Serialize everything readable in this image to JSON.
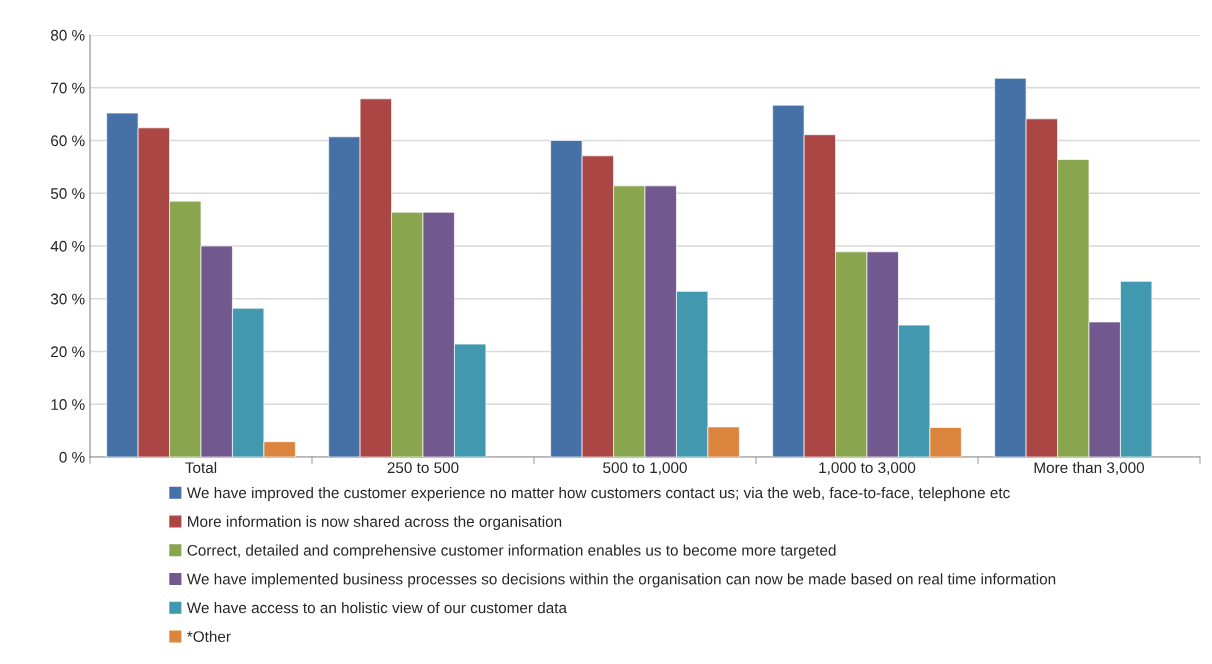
{
  "chart_data": {
    "type": "bar",
    "categories": [
      "Total",
      "250 to 500",
      "500 to 1,000",
      "1,000 to 3,000",
      "More than 3,000"
    ],
    "series": [
      {
        "name": "We have improved the customer experience no matter how customers contact us; via the web, face-to-face, telephone etc",
        "color": "#4571a7",
        "values": [
          65.2,
          60.7,
          60.0,
          66.7,
          71.8
        ]
      },
      {
        "name": "More information is now shared across the organisation",
        "color": "#aa4643",
        "values": [
          62.4,
          67.9,
          57.1,
          61.1,
          64.1
        ]
      },
      {
        "name": "Correct, detailed and comprehensive customer information enables us to become more targeted",
        "color": "#89a54e",
        "values": [
          48.5,
          46.4,
          51.4,
          38.9,
          56.4
        ]
      },
      {
        "name": "We have implemented business processes so decisions within the organisation can now be made based on real time information",
        "color": "#71588f",
        "values": [
          40.0,
          46.4,
          51.4,
          38.9,
          25.6
        ]
      },
      {
        "name": "We have access to an holistic view of our customer data",
        "color": "#4198af",
        "values": [
          28.2,
          21.4,
          31.4,
          25.0,
          33.3
        ]
      },
      {
        "name": "*Other",
        "color": "#db843d",
        "values": [
          2.9,
          null,
          5.7,
          5.6,
          null
        ]
      }
    ],
    "ylim": [
      0,
      80
    ],
    "yticks": [
      {
        "value": 0,
        "label": "0 %"
      },
      {
        "value": 10,
        "label": "10 %"
      },
      {
        "value": 20,
        "label": "20 %"
      },
      {
        "value": 30,
        "label": "30 %"
      },
      {
        "value": 40,
        "label": "40 %"
      },
      {
        "value": 50,
        "label": "50 %"
      },
      {
        "value": 60,
        "label": "60 %"
      },
      {
        "value": 70,
        "label": "70 %"
      },
      {
        "value": 80,
        "label": "80 %"
      }
    ],
    "grid": "y",
    "legend": "bottom"
  }
}
